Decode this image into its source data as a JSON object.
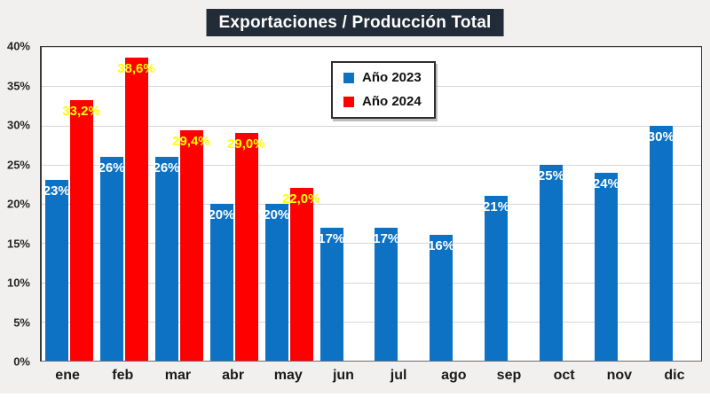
{
  "title": "Exportaciones / Producción Total",
  "legend": {
    "items": [
      {
        "label": "Año 2023",
        "color": "#0D72C4"
      },
      {
        "label": "Año 2024",
        "color": "#FE0000"
      }
    ]
  },
  "chart_data": {
    "type": "bar",
    "title": "Exportaciones / Producción Total",
    "categories": [
      "ene",
      "feb",
      "mar",
      "abr",
      "may",
      "jun",
      "jul",
      "ago",
      "sep",
      "oct",
      "nov",
      "dic"
    ],
    "series": [
      {
        "name": "Año 2023",
        "color": "#0D72C4",
        "label_color": "#FFFFFF",
        "values": [
          23,
          26,
          26,
          20,
          20,
          17,
          17,
          16,
          21,
          25,
          24,
          30
        ],
        "labels": [
          "23%",
          "26%",
          "26%",
          "20%",
          "20%",
          "17%",
          "17%",
          "16%",
          "21%",
          "25%",
          "24%",
          "30%"
        ]
      },
      {
        "name": "Año 2024",
        "color": "#FE0000",
        "label_color": "#FFFF00",
        "values": [
          33.2,
          38.6,
          29.4,
          29.0,
          22.0,
          null,
          null,
          null,
          null,
          null,
          null,
          null
        ],
        "labels": [
          "33,2%",
          "38,6%",
          "29,4%",
          "29,0%",
          "22,0%",
          null,
          null,
          null,
          null,
          null,
          null,
          null
        ]
      }
    ],
    "xlabel": "",
    "ylabel": "",
    "ylim": [
      0,
      40
    ],
    "yticks": [
      "0%",
      "5%",
      "10%",
      "15%",
      "20%",
      "25%",
      "30%",
      "35%",
      "40%"
    ],
    "grid": true,
    "legend_position": "inside-top-center"
  },
  "colors": {
    "background": "#F1F0EE",
    "plot_background": "#FFFFFF",
    "gridline": "#D6D6D6",
    "axis_line": "#3a3a3a",
    "title_background": "#222B38",
    "title_text": "#FFFFFF",
    "tick_text": "#262626"
  }
}
